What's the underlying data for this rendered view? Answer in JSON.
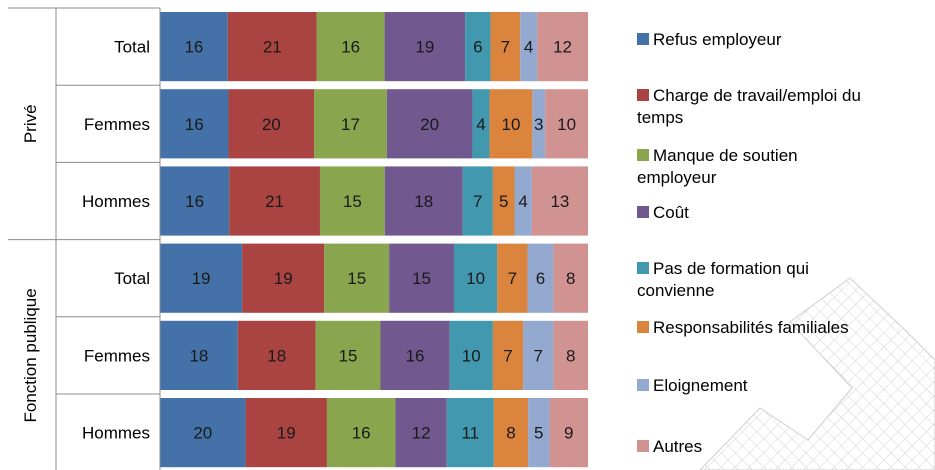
{
  "chart_data": {
    "type": "bar",
    "orientation": "horizontal",
    "stacked": "percent",
    "title": "",
    "xlabel": "",
    "ylabel": "",
    "xlim": [
      0,
      100
    ],
    "grid": false,
    "legend_position": "right",
    "groups": [
      {
        "label": "Privé",
        "rows": [
          "Total",
          "Femmes",
          "Hommes"
        ]
      },
      {
        "label": "Fonction publique",
        "rows": [
          "Total",
          "Femmes",
          "Hommes"
        ]
      }
    ],
    "categories": [
      "Privé — Total",
      "Privé — Femmes",
      "Privé — Hommes",
      "Fonction publique — Total",
      "Fonction publique — Femmes",
      "Fonction publique — Hommes"
    ],
    "row_labels": [
      "Total",
      "Femmes",
      "Hommes",
      "Total",
      "Femmes",
      "Hommes"
    ],
    "series": [
      {
        "name": "Refus employeur",
        "color": "#4472a8",
        "values": [
          16,
          16,
          16,
          19,
          18,
          20
        ]
      },
      {
        "name": "Charge de travail/emploi du temps",
        "color": "#a94442",
        "values": [
          21,
          20,
          21,
          19,
          18,
          19
        ]
      },
      {
        "name": "Manque de soutien employeur",
        "color": "#89a54e",
        "values": [
          16,
          17,
          15,
          15,
          15,
          16
        ]
      },
      {
        "name": "Coût",
        "color": "#71588f",
        "values": [
          19,
          20,
          18,
          15,
          16,
          12
        ]
      },
      {
        "name": "Pas de formation qui convienne",
        "color": "#4198af",
        "values": [
          6,
          4,
          7,
          10,
          10,
          11
        ]
      },
      {
        "name": "Responsabilités familiales",
        "color": "#db843d",
        "values": [
          7,
          10,
          5,
          7,
          7,
          8
        ]
      },
      {
        "name": "Eloignement",
        "color": "#93a9cf",
        "values": [
          4,
          3,
          4,
          6,
          7,
          5
        ]
      },
      {
        "name": "Autres",
        "color": "#d19392",
        "values": [
          12,
          10,
          13,
          8,
          8,
          9
        ]
      }
    ],
    "legend_lines": [
      [
        "Refus employeur"
      ],
      [
        "Charge de travail/emploi du",
        "temps"
      ],
      [
        "Manque de soutien",
        "employeur"
      ],
      [
        "Coût"
      ],
      [
        "Pas de formation qui",
        "convienne"
      ],
      [
        "Responsabilités familiales"
      ],
      [
        "Eloignement"
      ],
      [
        "Autres"
      ]
    ]
  }
}
